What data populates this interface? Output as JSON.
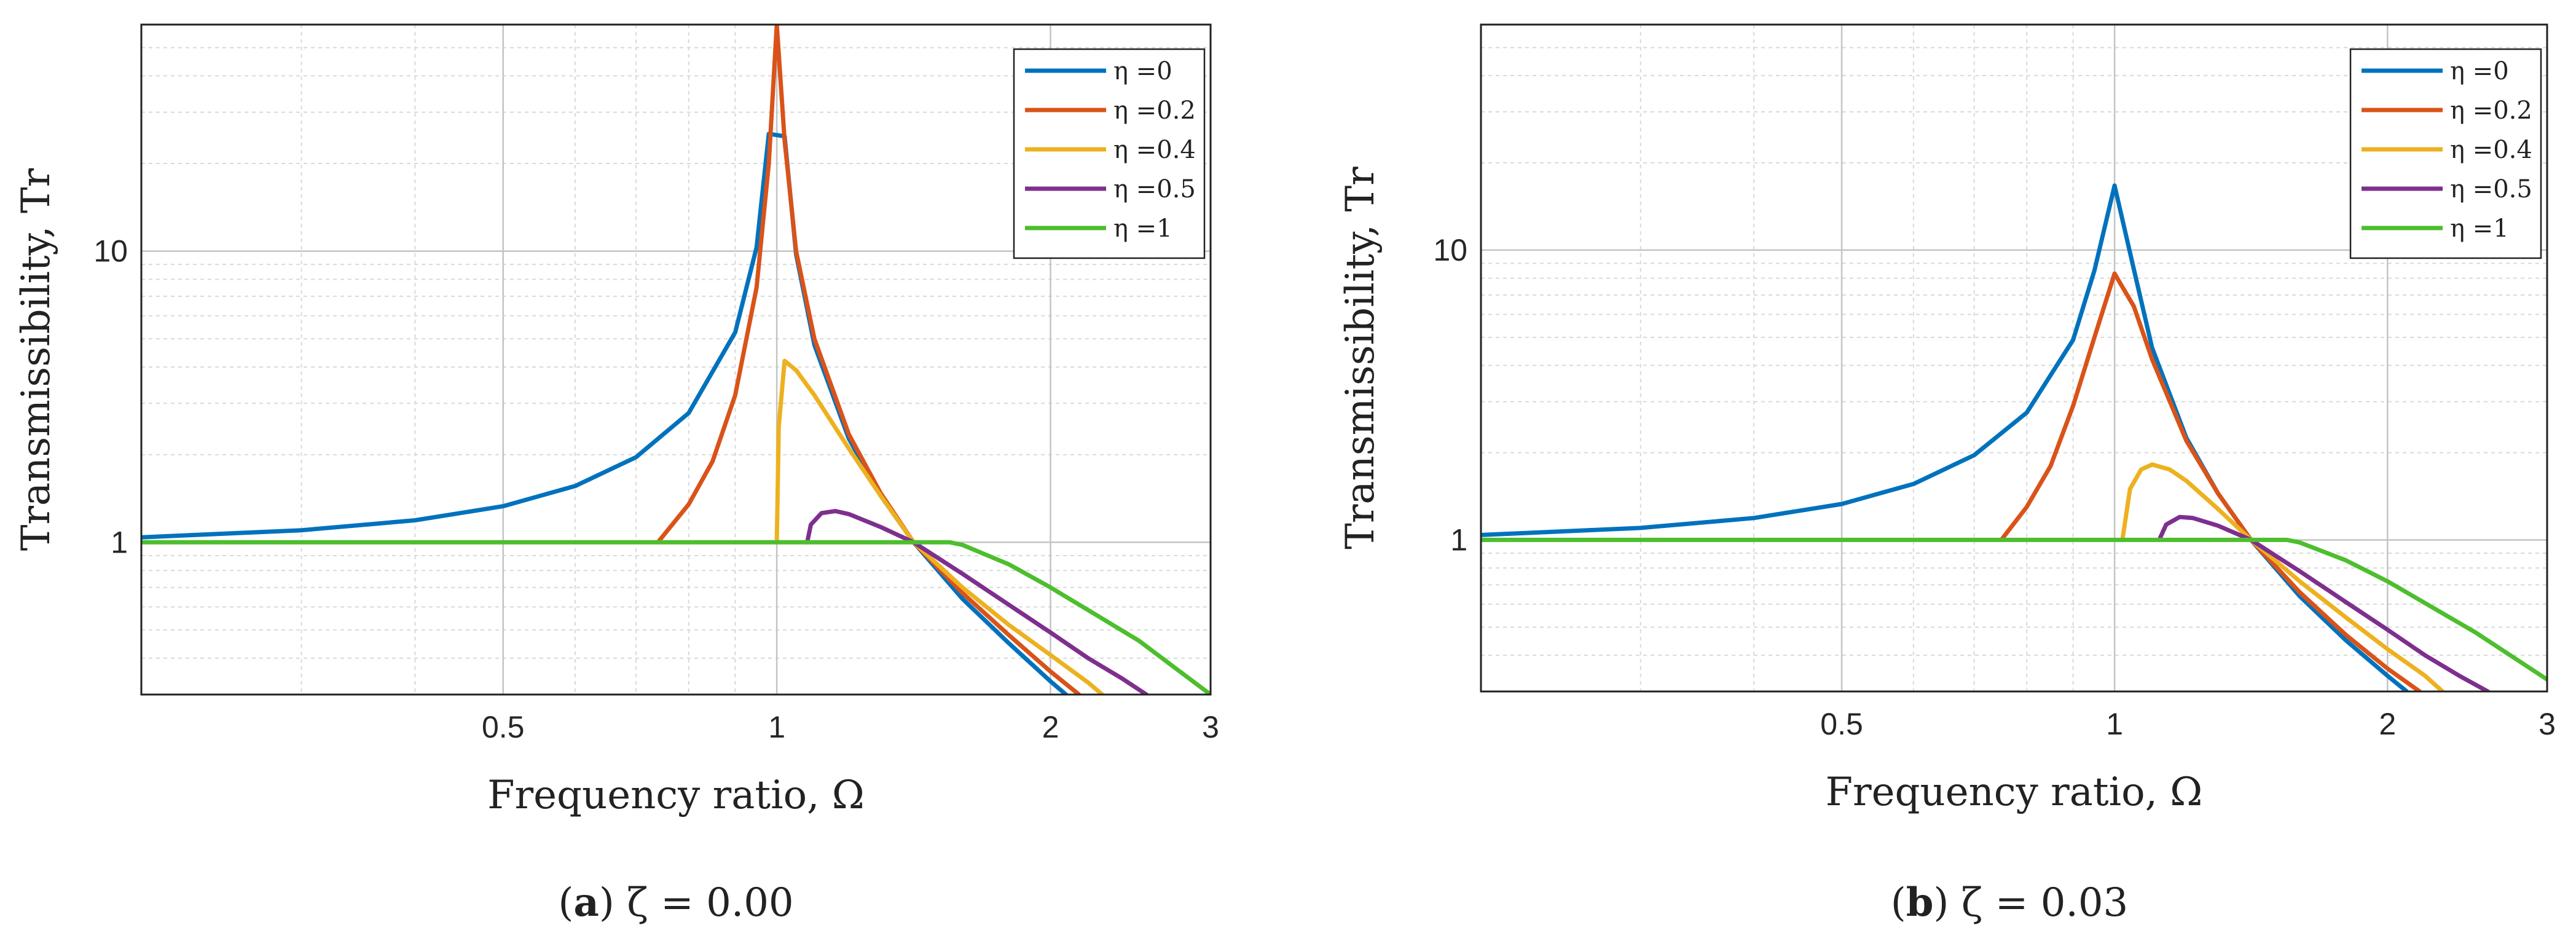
{
  "chart_data": [
    {
      "type": "line",
      "caption_label": "a",
      "caption_param": "ζ = 0.00",
      "xlabel": "Frequency ratio, Ω",
      "ylabel": "Transmissibility, Tr",
      "xscale": "log",
      "yscale": "log",
      "xlim": [
        0.2,
        3
      ],
      "ylim": [
        0.3,
        60
      ],
      "x_ticks": [
        0.5,
        1,
        2,
        3
      ],
      "x_tick_labels": [
        "0.5",
        "1",
        "2",
        "3"
      ],
      "y_ticks": [
        1,
        10
      ],
      "y_tick_labels": [
        "1",
        "10"
      ],
      "grid": true,
      "legend_position": "top-right",
      "series": [
        {
          "name": "η =0",
          "color": "#0072BD",
          "x": [
            0.2,
            0.3,
            0.4,
            0.5,
            0.6,
            0.7,
            0.8,
            0.9,
            0.95,
            0.98,
            1.02,
            1.05,
            1.1,
            1.2,
            1.3,
            1.414,
            1.6,
            1.8,
            2.0,
            2.08
          ],
          "y": [
            1.04,
            1.1,
            1.19,
            1.33,
            1.56,
            1.96,
            2.78,
            5.26,
            10.3,
            25.3,
            24.8,
            9.76,
            4.76,
            2.27,
            1.45,
            1.0,
            0.64,
            0.45,
            0.333,
            0.3
          ]
        },
        {
          "name": "η =0.2",
          "color": "#D95319",
          "x": [
            0.74,
            0.8,
            0.85,
            0.9,
            0.95,
            0.98,
            1.0,
            1.02,
            1.05,
            1.1,
            1.2,
            1.3,
            1.414,
            1.6,
            1.8,
            2.0,
            2.15
          ],
          "y": [
            1.0,
            1.35,
            1.9,
            3.2,
            7.5,
            20,
            60,
            24,
            10,
            5.0,
            2.35,
            1.48,
            1.0,
            0.67,
            0.48,
            0.36,
            0.3
          ]
        },
        {
          "name": "η =0.4",
          "color": "#EDB120",
          "x": [
            1.0,
            1.005,
            1.02,
            1.05,
            1.1,
            1.2,
            1.3,
            1.414,
            1.6,
            1.8,
            2.0,
            2.2,
            2.28
          ],
          "y": [
            1.0,
            2.5,
            4.2,
            3.9,
            3.2,
            2.1,
            1.45,
            1.0,
            0.7,
            0.52,
            0.41,
            0.33,
            0.3
          ]
        },
        {
          "name": "η =0.5",
          "color": "#7E2F8E",
          "x": [
            1.08,
            1.09,
            1.12,
            1.16,
            1.2,
            1.3,
            1.414,
            1.6,
            1.8,
            2.0,
            2.2,
            2.4,
            2.55
          ],
          "y": [
            1.0,
            1.15,
            1.26,
            1.28,
            1.25,
            1.13,
            1.0,
            0.78,
            0.61,
            0.49,
            0.4,
            0.34,
            0.3
          ]
        },
        {
          "name": "η =1",
          "color": "#4DBE2E",
          "x": [
            0.2,
            1.0,
            1.55,
            1.6,
            1.8,
            2.0,
            2.5,
            3.0
          ],
          "y": [
            1.0,
            1.0,
            1.0,
            0.98,
            0.84,
            0.7,
            0.46,
            0.3
          ]
        }
      ]
    },
    {
      "type": "line",
      "caption_label": "b",
      "caption_param": "ζ = 0.03",
      "xlabel": "Frequency ratio, Ω",
      "ylabel": "Transmissibility, Tr",
      "xscale": "log",
      "yscale": "log",
      "xlim": [
        0.2,
        3
      ],
      "ylim": [
        0.3,
        60
      ],
      "x_ticks": [
        0.5,
        1,
        2,
        3
      ],
      "x_tick_labels": [
        "0.5",
        "1",
        "2",
        "3"
      ],
      "y_ticks": [
        1,
        10
      ],
      "y_tick_labels": [
        "1",
        "10"
      ],
      "grid": true,
      "legend_position": "top-right",
      "series": [
        {
          "name": "η =0",
          "color": "#0072BD",
          "x": [
            0.2,
            0.3,
            0.4,
            0.5,
            0.6,
            0.7,
            0.8,
            0.9,
            0.95,
            1.0,
            1.05,
            1.1,
            1.2,
            1.3,
            1.414,
            1.6,
            1.8,
            2.0,
            2.1
          ],
          "y": [
            1.04,
            1.1,
            1.19,
            1.33,
            1.56,
            1.96,
            2.75,
            4.9,
            8.5,
            16.7,
            8.6,
            4.6,
            2.25,
            1.45,
            1.0,
            0.64,
            0.45,
            0.34,
            0.3
          ]
        },
        {
          "name": "η =0.2",
          "color": "#D95319",
          "x": [
            0.75,
            0.8,
            0.85,
            0.9,
            0.95,
            1.0,
            1.05,
            1.1,
            1.2,
            1.3,
            1.414,
            1.6,
            1.8,
            2.0,
            2.17
          ],
          "y": [
            1.0,
            1.3,
            1.8,
            2.9,
            5.0,
            8.3,
            6.4,
            4.2,
            2.2,
            1.45,
            1.0,
            0.66,
            0.47,
            0.36,
            0.3
          ]
        },
        {
          "name": "η =0.4",
          "color": "#EDB120",
          "x": [
            1.02,
            1.04,
            1.07,
            1.1,
            1.15,
            1.2,
            1.3,
            1.414,
            1.6,
            1.8,
            2.0,
            2.2,
            2.3
          ],
          "y": [
            1.0,
            1.5,
            1.75,
            1.82,
            1.75,
            1.6,
            1.28,
            1.0,
            0.72,
            0.54,
            0.42,
            0.34,
            0.3
          ]
        },
        {
          "name": "η =0.5",
          "color": "#7E2F8E",
          "x": [
            1.12,
            1.14,
            1.18,
            1.22,
            1.3,
            1.414,
            1.6,
            1.8,
            2.0,
            2.2,
            2.4,
            2.58
          ],
          "y": [
            1.0,
            1.13,
            1.2,
            1.19,
            1.12,
            1.0,
            0.78,
            0.61,
            0.49,
            0.4,
            0.34,
            0.3
          ]
        },
        {
          "name": "η =1",
          "color": "#4DBE2E",
          "x": [
            0.2,
            1.0,
            1.55,
            1.6,
            1.8,
            2.0,
            2.5,
            3.0
          ],
          "y": [
            1.0,
            1.0,
            1.0,
            0.98,
            0.85,
            0.72,
            0.48,
            0.33
          ]
        }
      ]
    }
  ]
}
